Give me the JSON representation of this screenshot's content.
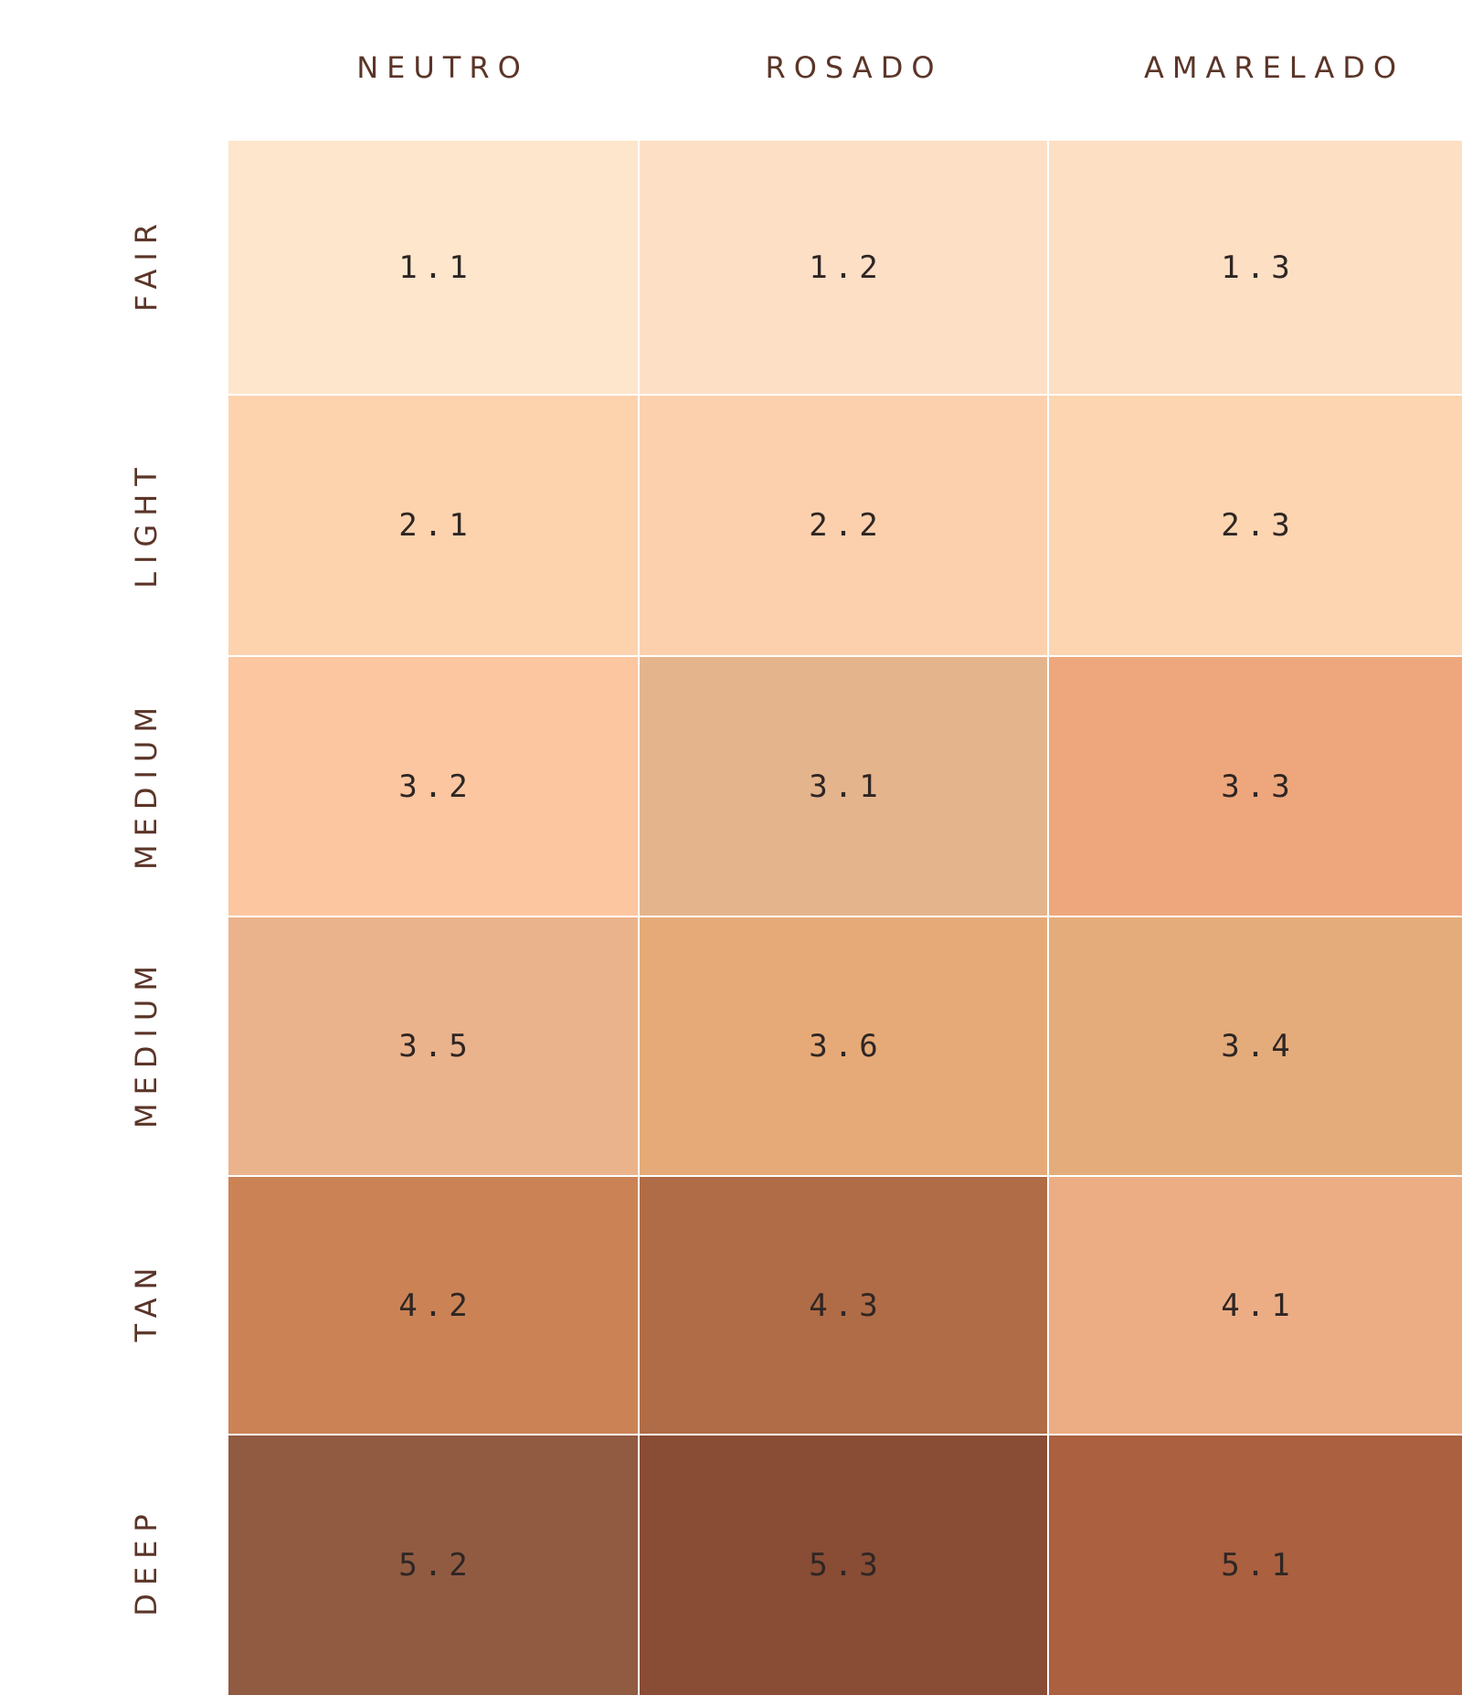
{
  "columns": [
    "NEUTRO",
    "ROSADO",
    "AMARELADO"
  ],
  "rows": [
    {
      "label": "FAIR",
      "cells": [
        {
          "code": "1.1",
          "color": "#fee6cc"
        },
        {
          "code": "1.2",
          "color": "#fddfc6"
        },
        {
          "code": "1.3",
          "color": "#fddfc3"
        }
      ]
    },
    {
      "label": "LIGHT",
      "cells": [
        {
          "code": "2.1",
          "color": "#fdd3ae"
        },
        {
          "code": "2.2",
          "color": "#fdd0ad"
        },
        {
          "code": "2.3",
          "color": "#fdd5b0"
        }
      ]
    },
    {
      "label": "MEDIUM",
      "cells": [
        {
          "code": "3.2",
          "color": "#fcc6a0"
        },
        {
          "code": "3.1",
          "color": "#e4b48d"
        },
        {
          "code": "3.3",
          "color": "#eea77c"
        }
      ]
    },
    {
      "label": "MEDIUM",
      "cells": [
        {
          "code": "3.5",
          "color": "#ebb38c"
        },
        {
          "code": "3.6",
          "color": "#e6aa78"
        },
        {
          "code": "3.4",
          "color": "#e4ac7b"
        }
      ]
    },
    {
      "label": "TAN",
      "cells": [
        {
          "code": "4.2",
          "color": "#cb8356"
        },
        {
          "code": "4.3",
          "color": "#b06c46"
        },
        {
          "code": "4.1",
          "color": "#ecad84"
        }
      ]
    },
    {
      "label": "DEEP",
      "cells": [
        {
          "code": "5.2",
          "color": "#915b42"
        },
        {
          "code": "5.3",
          "color": "#894c35"
        },
        {
          "code": "5.1",
          "color": "#ab603f"
        }
      ]
    }
  ]
}
